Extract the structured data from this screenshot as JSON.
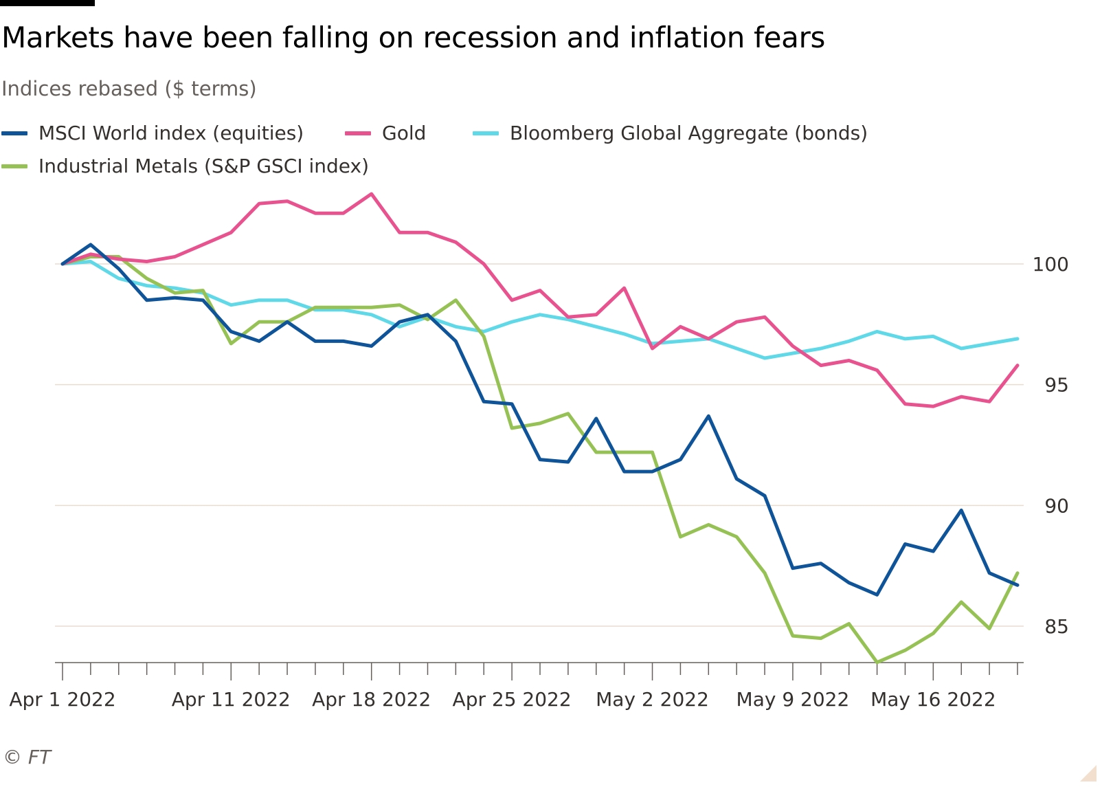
{
  "header": {
    "title": "Markets have been falling on recession and inflation fears",
    "subtitle": "Indices rebased ($ terms)"
  },
  "footer": {
    "source": "© FT"
  },
  "colors": {
    "msci": "#0f5499",
    "gold": "#e8538f",
    "bonds": "#5fd8e8",
    "metals": "#96c154",
    "grid": "#e9dccf",
    "axis": "#66605c"
  },
  "chart_data": {
    "type": "line",
    "title": "Markets have been falling on recession and inflation fears",
    "subtitle": "Indices rebased ($ terms)",
    "xlabel": "",
    "ylabel": "",
    "ylim": [
      83.5,
      104
    ],
    "yticks": [
      85,
      90,
      95,
      100
    ],
    "grid": true,
    "y_axis_position": "right",
    "legend_position": "top-left",
    "x": [
      "Apr 1 2022",
      "Apr 4 2022",
      "Apr 5 2022",
      "Apr 6 2022",
      "Apr 7 2022",
      "Apr 8 2022",
      "Apr 11 2022",
      "Apr 12 2022",
      "Apr 13 2022",
      "Apr 14 2022",
      "Apr 15 2022",
      "Apr 18 2022",
      "Apr 19 2022",
      "Apr 20 2022",
      "Apr 21 2022",
      "Apr 22 2022",
      "Apr 25 2022",
      "Apr 26 2022",
      "Apr 27 2022",
      "Apr 28 2022",
      "Apr 29 2022",
      "May 2 2022",
      "May 3 2022",
      "May 4 2022",
      "May 5 2022",
      "May 6 2022",
      "May 9 2022",
      "May 10 2022",
      "May 11 2022",
      "May 12 2022",
      "May 13 2022",
      "May 16 2022",
      "May 17 2022",
      "May 18 2022",
      "May 19 2022"
    ],
    "xtick_labels": [
      {
        "index": 0,
        "label": "Apr 1 2022"
      },
      {
        "index": 6,
        "label": "Apr 11 2022"
      },
      {
        "index": 11,
        "label": "Apr 18 2022"
      },
      {
        "index": 16,
        "label": "Apr 25 2022"
      },
      {
        "index": 21,
        "label": "May 2 2022"
      },
      {
        "index": 26,
        "label": "May 9 2022"
      },
      {
        "index": 31,
        "label": "May 16 2022"
      }
    ],
    "series": [
      {
        "name": "MSCI World index (equities)",
        "color": "#0f5499",
        "values": [
          100.0,
          100.8,
          99.8,
          98.5,
          98.6,
          98.5,
          97.2,
          96.8,
          97.6,
          96.8,
          96.8,
          96.6,
          97.6,
          97.9,
          96.8,
          94.3,
          94.2,
          91.9,
          91.8,
          93.6,
          91.4,
          91.4,
          91.9,
          93.7,
          91.1,
          90.4,
          87.4,
          87.6,
          86.8,
          86.3,
          88.4,
          88.1,
          89.8,
          87.2,
          86.7
        ]
      },
      {
        "name": "Gold",
        "color": "#e8538f",
        "values": [
          100.0,
          100.4,
          100.2,
          100.1,
          100.3,
          100.8,
          101.3,
          102.5,
          102.6,
          102.1,
          102.1,
          102.9,
          101.3,
          101.3,
          100.9,
          100.0,
          98.5,
          98.9,
          97.8,
          97.9,
          99.0,
          96.5,
          97.4,
          96.9,
          97.6,
          97.8,
          96.6,
          95.8,
          96.0,
          95.6,
          94.2,
          94.1,
          94.5,
          94.3,
          95.8
        ]
      },
      {
        "name": "Bloomberg Global Aggregate (bonds)",
        "color": "#5fd8e8",
        "values": [
          100.0,
          100.1,
          99.4,
          99.1,
          99.0,
          98.8,
          98.3,
          98.5,
          98.5,
          98.1,
          98.1,
          97.9,
          97.4,
          97.8,
          97.4,
          97.2,
          97.6,
          97.9,
          97.7,
          97.4,
          97.1,
          96.7,
          96.8,
          96.9,
          96.5,
          96.1,
          96.3,
          96.5,
          96.8,
          97.2,
          96.9,
          97.0,
          96.5,
          96.7,
          96.9
        ]
      },
      {
        "name": "Industrial Metals (S&P GSCI index)",
        "color": "#96c154",
        "values": [
          100.0,
          100.3,
          100.3,
          99.4,
          98.8,
          98.9,
          96.7,
          97.6,
          97.6,
          98.2,
          98.2,
          98.2,
          98.3,
          97.7,
          98.5,
          97.0,
          93.2,
          93.4,
          93.8,
          92.2,
          92.2,
          92.2,
          88.7,
          89.2,
          88.7,
          87.2,
          84.6,
          84.5,
          85.1,
          83.5,
          84.0,
          84.7,
          86.0,
          84.9,
          87.2
        ]
      }
    ]
  }
}
